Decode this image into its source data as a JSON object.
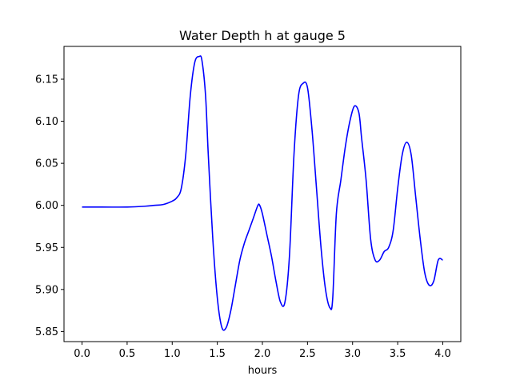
{
  "chart_data": {
    "type": "line",
    "title": "Water Depth h at gauge 5",
    "xlabel": "hours",
    "ylabel": "",
    "xlim": [
      -0.2,
      4.2
    ],
    "ylim": [
      5.838,
      6.189
    ],
    "grid": false,
    "x_ticks": [
      "0.0",
      "0.5",
      "1.0",
      "1.5",
      "2.0",
      "2.5",
      "3.0",
      "3.5",
      "4.0"
    ],
    "y_ticks": [
      "5.85",
      "5.90",
      "5.95",
      "6.00",
      "6.05",
      "6.10",
      "6.15"
    ],
    "series": [
      {
        "color": "#0000ff",
        "x": [
          0.0,
          0.5,
          0.7,
          0.8,
          0.9,
          1.0,
          1.05,
          1.1,
          1.15,
          1.2,
          1.25,
          1.3,
          1.33,
          1.37,
          1.4,
          1.45,
          1.5,
          1.55,
          1.6,
          1.65,
          1.7,
          1.75,
          1.8,
          1.85,
          1.9,
          1.95,
          1.97,
          2.0,
          2.05,
          2.1,
          2.15,
          2.2,
          2.25,
          2.3,
          2.35,
          2.4,
          2.45,
          2.5,
          2.55,
          2.6,
          2.65,
          2.7,
          2.75,
          2.78,
          2.82,
          2.87,
          2.92,
          2.97,
          3.02,
          3.07,
          3.1,
          3.15,
          3.2,
          3.25,
          3.3,
          3.35,
          3.4,
          3.45,
          3.5,
          3.55,
          3.6,
          3.65,
          3.7,
          3.75,
          3.8,
          3.85,
          3.9,
          3.95,
          4.0
        ],
        "y": [
          5.998,
          5.998,
          5.999,
          6.0,
          6.001,
          6.005,
          6.009,
          6.02,
          6.06,
          6.13,
          6.17,
          6.177,
          6.172,
          6.13,
          6.06,
          5.96,
          5.89,
          5.855,
          5.855,
          5.875,
          5.905,
          5.935,
          5.955,
          5.97,
          5.985,
          6.0,
          6.0,
          5.99,
          5.965,
          5.94,
          5.91,
          5.885,
          5.885,
          5.94,
          6.06,
          6.13,
          6.145,
          6.14,
          6.09,
          6.02,
          5.95,
          5.9,
          5.878,
          5.89,
          5.99,
          6.03,
          6.07,
          6.1,
          6.118,
          6.11,
          6.08,
          6.03,
          5.96,
          5.935,
          5.935,
          5.945,
          5.95,
          5.97,
          6.02,
          6.06,
          6.075,
          6.06,
          6.01,
          5.96,
          5.92,
          5.905,
          5.91,
          5.935,
          5.935
        ]
      }
    ]
  }
}
